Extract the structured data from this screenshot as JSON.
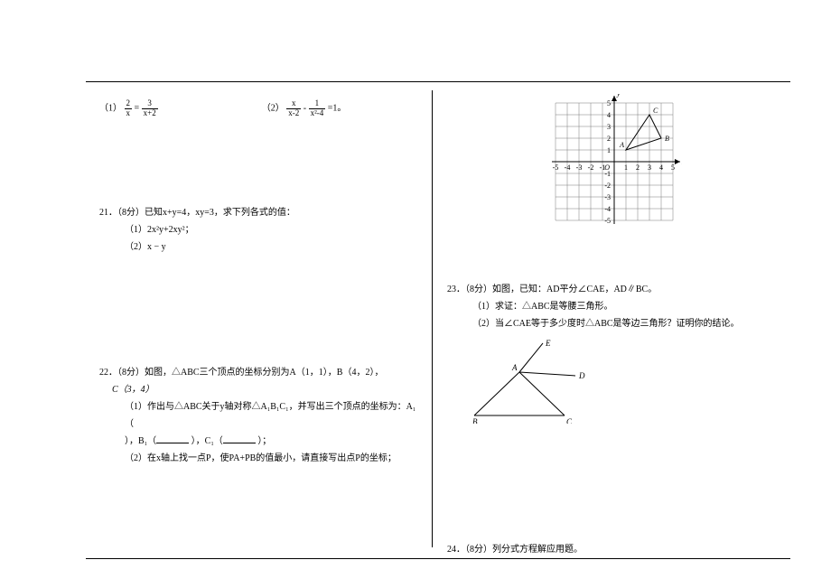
{
  "eq": {
    "part1_label": "（1）",
    "part2_label": "（2）",
    "eq1_num1": "2",
    "eq1_den1": "x",
    "eq1_op": "=",
    "eq1_num2": "3",
    "eq1_den2": "x+2",
    "eq2_num1": "x",
    "eq2_den1": "x-2",
    "eq2_op": "-",
    "eq2_num2": "1",
    "eq2_den2": "x²-4",
    "eq2_tail": "=1。"
  },
  "q21": {
    "head": "21．（8分）已知x+y=4，xy=3，求下列各式的值：",
    "p1": "（1）2x²y+2xy²；",
    "p2": "（2）x − y"
  },
  "q22": {
    "head": "22．（8分）如图，△ABC三个顶点的坐标分别为A（1，1），B（4，2），",
    "cline": "C（3，4）",
    "p1a": "（1）作出与△ABC关于y轴对称△A₁B₁C₁，并写出三个顶点的坐标为：A₁（",
    "p1b": "），B₁（",
    "p1c": "），C₁（",
    "p1d": "）；",
    "p2": "（2）在x轴上找一点P，使PA+PB的值最小，请直接写出点P的坐标；"
  },
  "grid": {
    "range": 5,
    "cell": 13,
    "axis_color": "#000000",
    "grid_color": "#7a7a7a",
    "label_font": 8,
    "labels_x": [
      "-5",
      "-4",
      "-3",
      "-2",
      "-1",
      "",
      "1",
      "2",
      "3",
      "4",
      "5"
    ],
    "labels_y": [
      "-5",
      "-4",
      "-3",
      "-2",
      "-1",
      "",
      "1",
      "2",
      "3",
      "4",
      "5"
    ],
    "origin_label": "O",
    "x_axis_label": "x",
    "y_axis_label": "y",
    "triangle": {
      "A": [
        1,
        1
      ],
      "B": [
        4,
        2
      ],
      "C": [
        3,
        4
      ],
      "stroke": "#000000",
      "label_A": "A",
      "label_B": "B",
      "label_C": "C"
    }
  },
  "q23": {
    "head": "23．（8分）如图，已知：AD平分∠CAE，AD∥BC。",
    "p1": "（1）求证：△ABC是等腰三角形。",
    "p2": "（2）当∠CAE等于多少度时△ABC是等边三角形？证明你的结论。",
    "fig": {
      "E": [
        76,
        0
      ],
      "A": [
        50,
        32
      ],
      "D": [
        112,
        36
      ],
      "B": [
        0,
        80
      ],
      "C": [
        100,
        80
      ],
      "label_A": "A",
      "label_B": "B",
      "label_C": "C",
      "label_D": "D",
      "label_E": "E",
      "stroke": "#000000",
      "label_font": 9
    }
  },
  "q24": {
    "head": "24．（8分）列分式方程解应用题。"
  }
}
